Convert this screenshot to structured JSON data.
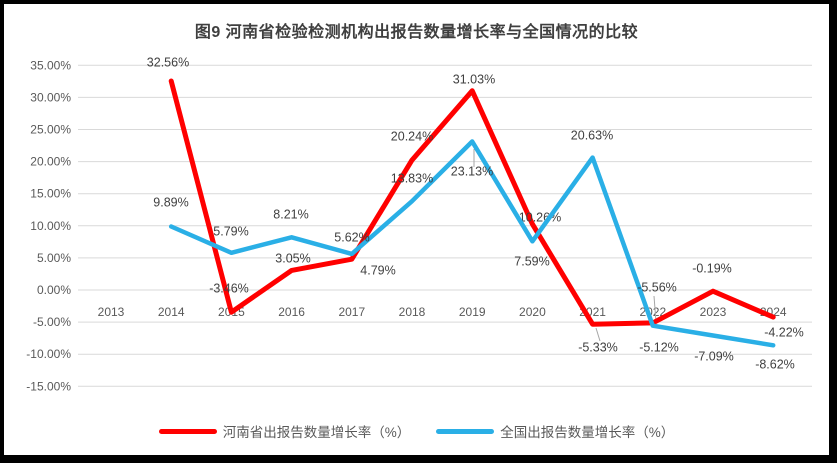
{
  "chart_data": {
    "type": "line",
    "title": "图9  河南省检验检测机构出报告数量增长率与全国情况的比较",
    "categories": [
      "2013",
      "2014",
      "2015",
      "2016",
      "2017",
      "2018",
      "2019",
      "2020",
      "2021",
      "2022",
      "2023",
      "2024"
    ],
    "xlabel": "",
    "ylabel": "",
    "ylim": [
      -15,
      35
    ],
    "ytick_step": 5,
    "ytick_labels": [
      "35.00%",
      "30.00%",
      "25.00%",
      "20.00%",
      "15.00%",
      "10.00%",
      "5.00%",
      "0.00%",
      "-5.00%",
      "-10.00%",
      "-15.00%"
    ],
    "grid": true,
    "legend_position": "bottom",
    "colors": {
      "gridline": "#D9D9D9",
      "axis_text": "#595959",
      "data_label_text": "#404040",
      "leader_line": "#A6A6A6",
      "frame_border": "#000000"
    },
    "series": [
      {
        "name": "河南省出报告数量增长率（%）",
        "color": "#FF0000",
        "values": [
          null,
          32.56,
          -3.46,
          3.05,
          4.79,
          20.24,
          31.03,
          10.26,
          -5.33,
          -5.12,
          -0.19,
          -4.22
        ],
        "labels": [
          "",
          "32.56%",
          "-3.46%",
          "3.05%",
          "4.79%",
          "20.24%",
          "31.03%",
          "10.26%",
          "-5.33%",
          "-5.12%",
          "-0.19%",
          "-4.22%"
        ]
      },
      {
        "name": "全国出报告数量增长率（%）",
        "color": "#2AAFE6",
        "values": [
          null,
          9.89,
          5.79,
          8.21,
          5.62,
          13.83,
          23.13,
          7.59,
          20.63,
          -5.56,
          -7.09,
          -8.62
        ],
        "labels": [
          "",
          "9.89%",
          "5.79%",
          "8.21%",
          "5.62%",
          "13.83%",
          "23.13%",
          "7.59%",
          "20.63%",
          "-5.56%",
          "-7.09%",
          "-8.62%"
        ]
      }
    ]
  }
}
